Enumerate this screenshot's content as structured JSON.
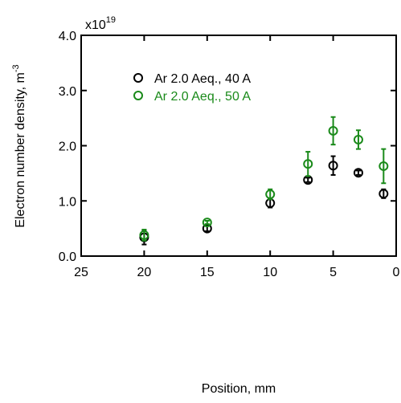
{
  "chart_data": {
    "type": "scatter",
    "xlabel": "Position, mm",
    "ylabel": "Electron number density, m",
    "ylabel_superscript": "-3",
    "y_multiplier_base": "x10",
    "y_multiplier_exponent": "19",
    "xlim": [
      25,
      0
    ],
    "ylim": [
      0.0,
      4.0
    ],
    "x_reversed": true,
    "x_ticks": [
      25,
      20,
      15,
      10,
      5,
      0
    ],
    "x_tick_labels": [
      "25",
      "20",
      "15",
      "10",
      "5",
      "0"
    ],
    "y_ticks": [
      0.0,
      1.0,
      2.0,
      3.0,
      4.0
    ],
    "y_tick_labels": [
      "0.0",
      "1.0",
      "2.0",
      "3.0",
      "4.0"
    ],
    "grid": false,
    "legend_position": "top-left",
    "series": [
      {
        "name": "Ar 2.0 Aeq., 40 A",
        "color": "#000000",
        "marker": "open-circle",
        "x": [
          20,
          15,
          10,
          7,
          5,
          3,
          1
        ],
        "y": [
          0.34,
          0.5,
          0.96,
          1.38,
          1.64,
          1.51,
          1.13
        ],
        "err": [
          0.13,
          0.05,
          0.08,
          0.04,
          0.17,
          0.04,
          0.08
        ]
      },
      {
        "name": "Ar 2.0 Aeq., 50 A",
        "color": "#1a8a1a",
        "marker": "open-circle",
        "x": [
          20,
          15,
          10,
          7,
          5,
          3,
          1
        ],
        "y": [
          0.38,
          0.61,
          1.12,
          1.67,
          2.27,
          2.11,
          1.63
        ],
        "err": [
          0.1,
          0.03,
          0.09,
          0.22,
          0.25,
          0.17,
          0.31
        ]
      }
    ]
  }
}
